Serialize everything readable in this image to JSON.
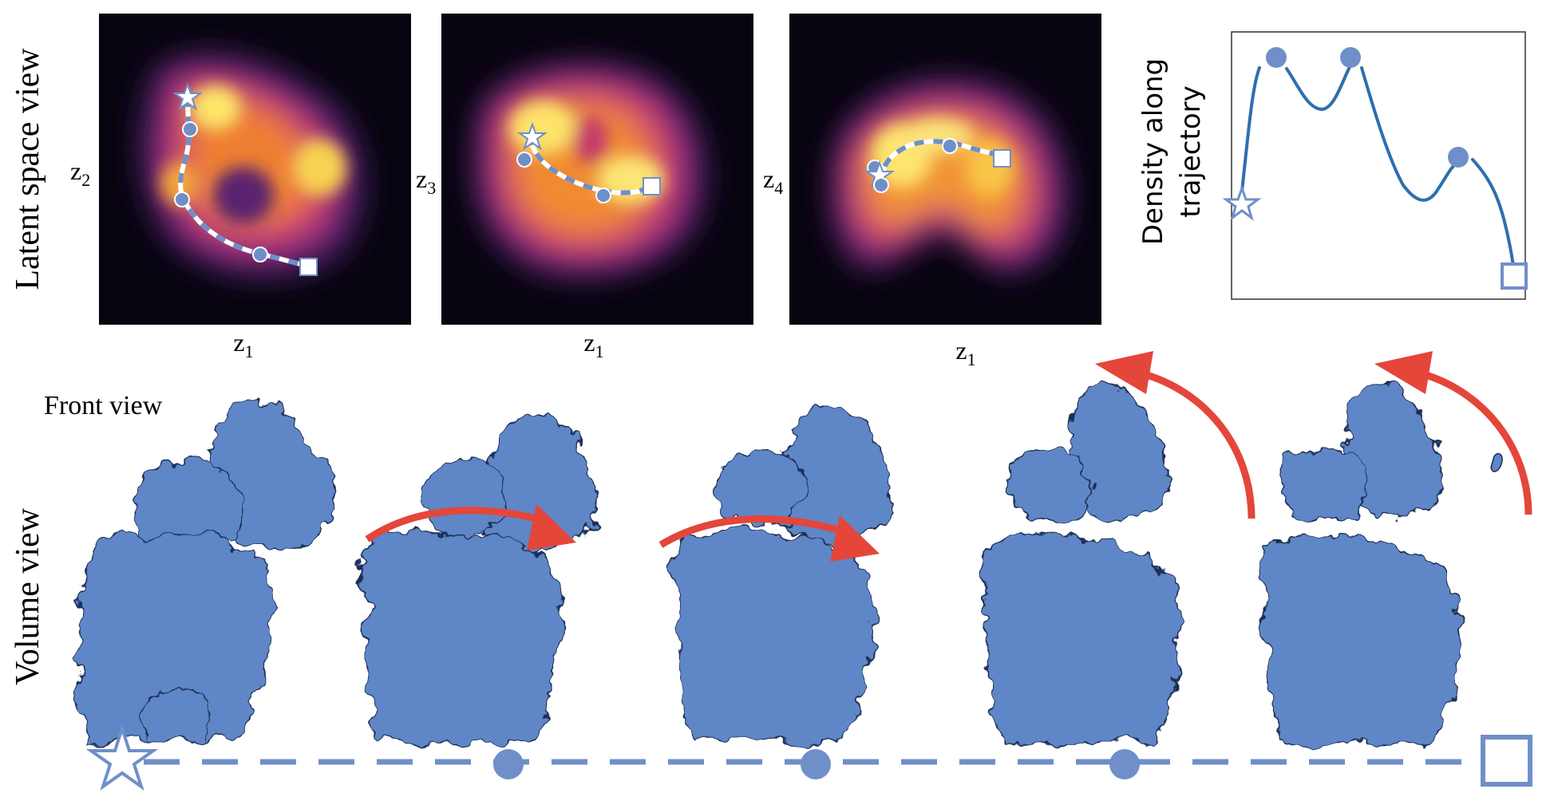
{
  "row_labels": {
    "latent": "Latent space view",
    "volume": "Volume view"
  },
  "front_view_label": "Front view",
  "panels": [
    {
      "xlabel": "z",
      "xsub": "1",
      "ylabel": "z",
      "ysub": "2"
    },
    {
      "xlabel": "z",
      "xsub": "1",
      "ylabel": "z",
      "ysub": "3"
    },
    {
      "xlabel": "z",
      "xsub": "1",
      "ylabel": "z",
      "ysub": "4"
    }
  ],
  "density_chart": {
    "ylabel_lines": [
      "Density along",
      "trajectory"
    ]
  },
  "marker_legend": [
    "star",
    "circle",
    "circle",
    "circle",
    "square"
  ],
  "colors": {
    "trajectory_blue": "#6f8fc9",
    "density_line": "#2d6fae",
    "arrow_red": "#e4463a",
    "volume_blue": "#5f86c6"
  }
}
